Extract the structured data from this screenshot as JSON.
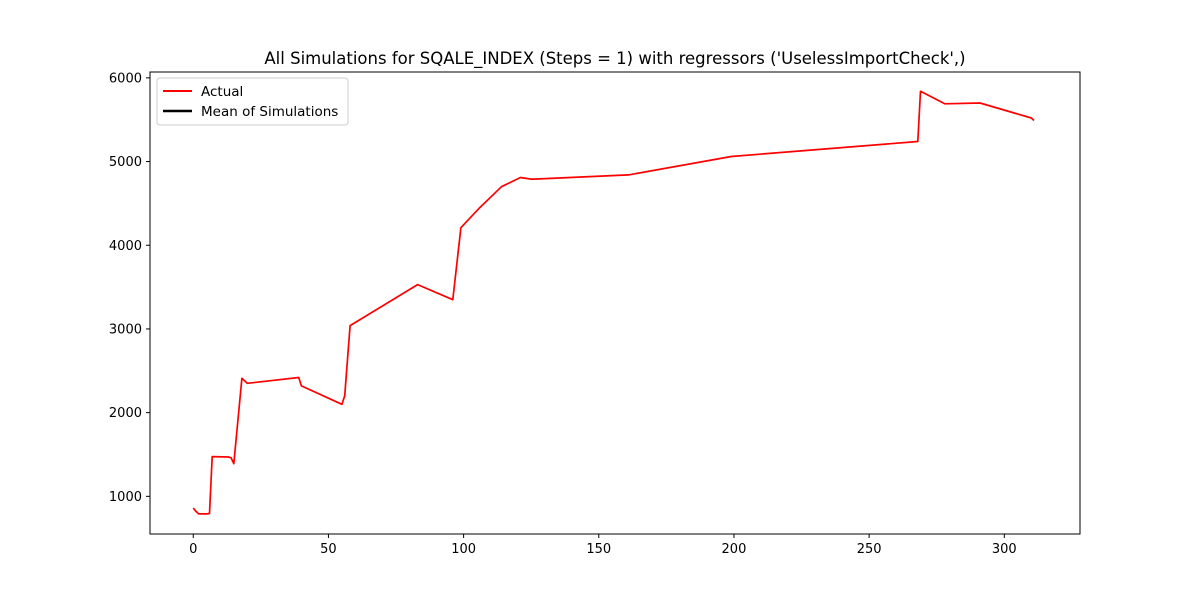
{
  "chart_data": {
    "type": "line",
    "title": "All Simulations for SQALE_INDEX (Steps = 1) with regressors ('UselessImportCheck',)",
    "xlabel": "",
    "ylabel": "",
    "xlim": [
      -16,
      328
    ],
    "ylim": [
      550,
      6070
    ],
    "xticks": [
      0,
      50,
      100,
      150,
      200,
      250,
      300
    ],
    "yticks": [
      1000,
      2000,
      3000,
      4000,
      5000,
      6000
    ],
    "grid": false,
    "legend_position": "top-left",
    "legend": [
      {
        "label": "Actual",
        "color": "#ff0000"
      },
      {
        "label": "Mean of Simulations",
        "color": "#000000"
      }
    ],
    "series": [
      {
        "name": "Actual",
        "color": "#ff0000",
        "x": [
          0,
          1,
          2,
          5,
          6,
          7,
          13,
          14,
          15,
          18,
          20,
          39,
          40,
          55,
          56,
          58,
          83,
          96,
          99,
          106,
          114,
          121,
          125,
          126,
          161,
          199,
          268,
          269,
          278,
          291,
          310,
          311
        ],
        "y": [
          860,
          820,
          790,
          790,
          795,
          1475,
          1470,
          1460,
          1390,
          2410,
          2350,
          2420,
          2320,
          2100,
          2200,
          3040,
          3530,
          3350,
          4210,
          4450,
          4700,
          4810,
          4790,
          4790,
          4840,
          5060,
          5240,
          5840,
          5690,
          5700,
          5520,
          5490
        ]
      },
      {
        "name": "Mean of Simulations",
        "color": "#000000",
        "x": [],
        "y": []
      }
    ]
  }
}
